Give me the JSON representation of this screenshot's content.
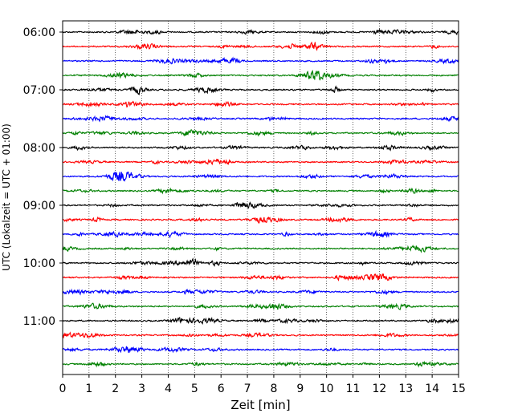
{
  "chart_data": {
    "type": "line",
    "title": "",
    "xlabel": "Zeit  [min]",
    "ylabel": "UTC (Lokalzeit = UTC + 01:00)",
    "xlim": [
      0,
      15
    ],
    "x_ticks": [
      "0",
      "1",
      "2",
      "3",
      "4",
      "5",
      "6",
      "7",
      "8",
      "9",
      "10",
      "11",
      "12",
      "13",
      "14",
      "15"
    ],
    "y_ticks": [
      "06:00",
      "07:00",
      "08:00",
      "09:00",
      "10:00",
      "11:00"
    ],
    "grid": "vertical dotted lines at each minute",
    "legend": "none",
    "trace_interval_min": 15,
    "first_trace": "06:00",
    "last_trace": "11:45",
    "trace_count": 24,
    "color_cycle": [
      "#000000",
      "#ff0000",
      "#0000ff",
      "#008000"
    ],
    "series": [
      {
        "start": "06:00",
        "color": "#000000"
      },
      {
        "start": "06:15",
        "color": "#ff0000"
      },
      {
        "start": "06:30",
        "color": "#0000ff"
      },
      {
        "start": "06:45",
        "color": "#008000"
      },
      {
        "start": "07:00",
        "color": "#000000"
      },
      {
        "start": "07:15",
        "color": "#ff0000"
      },
      {
        "start": "07:30",
        "color": "#0000ff"
      },
      {
        "start": "07:45",
        "color": "#008000"
      },
      {
        "start": "08:00",
        "color": "#000000"
      },
      {
        "start": "08:15",
        "color": "#ff0000"
      },
      {
        "start": "08:30",
        "color": "#0000ff"
      },
      {
        "start": "08:45",
        "color": "#008000"
      },
      {
        "start": "09:00",
        "color": "#000000"
      },
      {
        "start": "09:15",
        "color": "#ff0000"
      },
      {
        "start": "09:30",
        "color": "#0000ff"
      },
      {
        "start": "09:45",
        "color": "#008000"
      },
      {
        "start": "10:00",
        "color": "#000000"
      },
      {
        "start": "10:15",
        "color": "#ff0000"
      },
      {
        "start": "10:30",
        "color": "#0000ff"
      },
      {
        "start": "10:45",
        "color": "#008000"
      },
      {
        "start": "11:00",
        "color": "#000000"
      },
      {
        "start": "11:15",
        "color": "#ff0000"
      },
      {
        "start": "11:30",
        "color": "#0000ff"
      },
      {
        "start": "11:45",
        "color": "#008000"
      }
    ]
  }
}
